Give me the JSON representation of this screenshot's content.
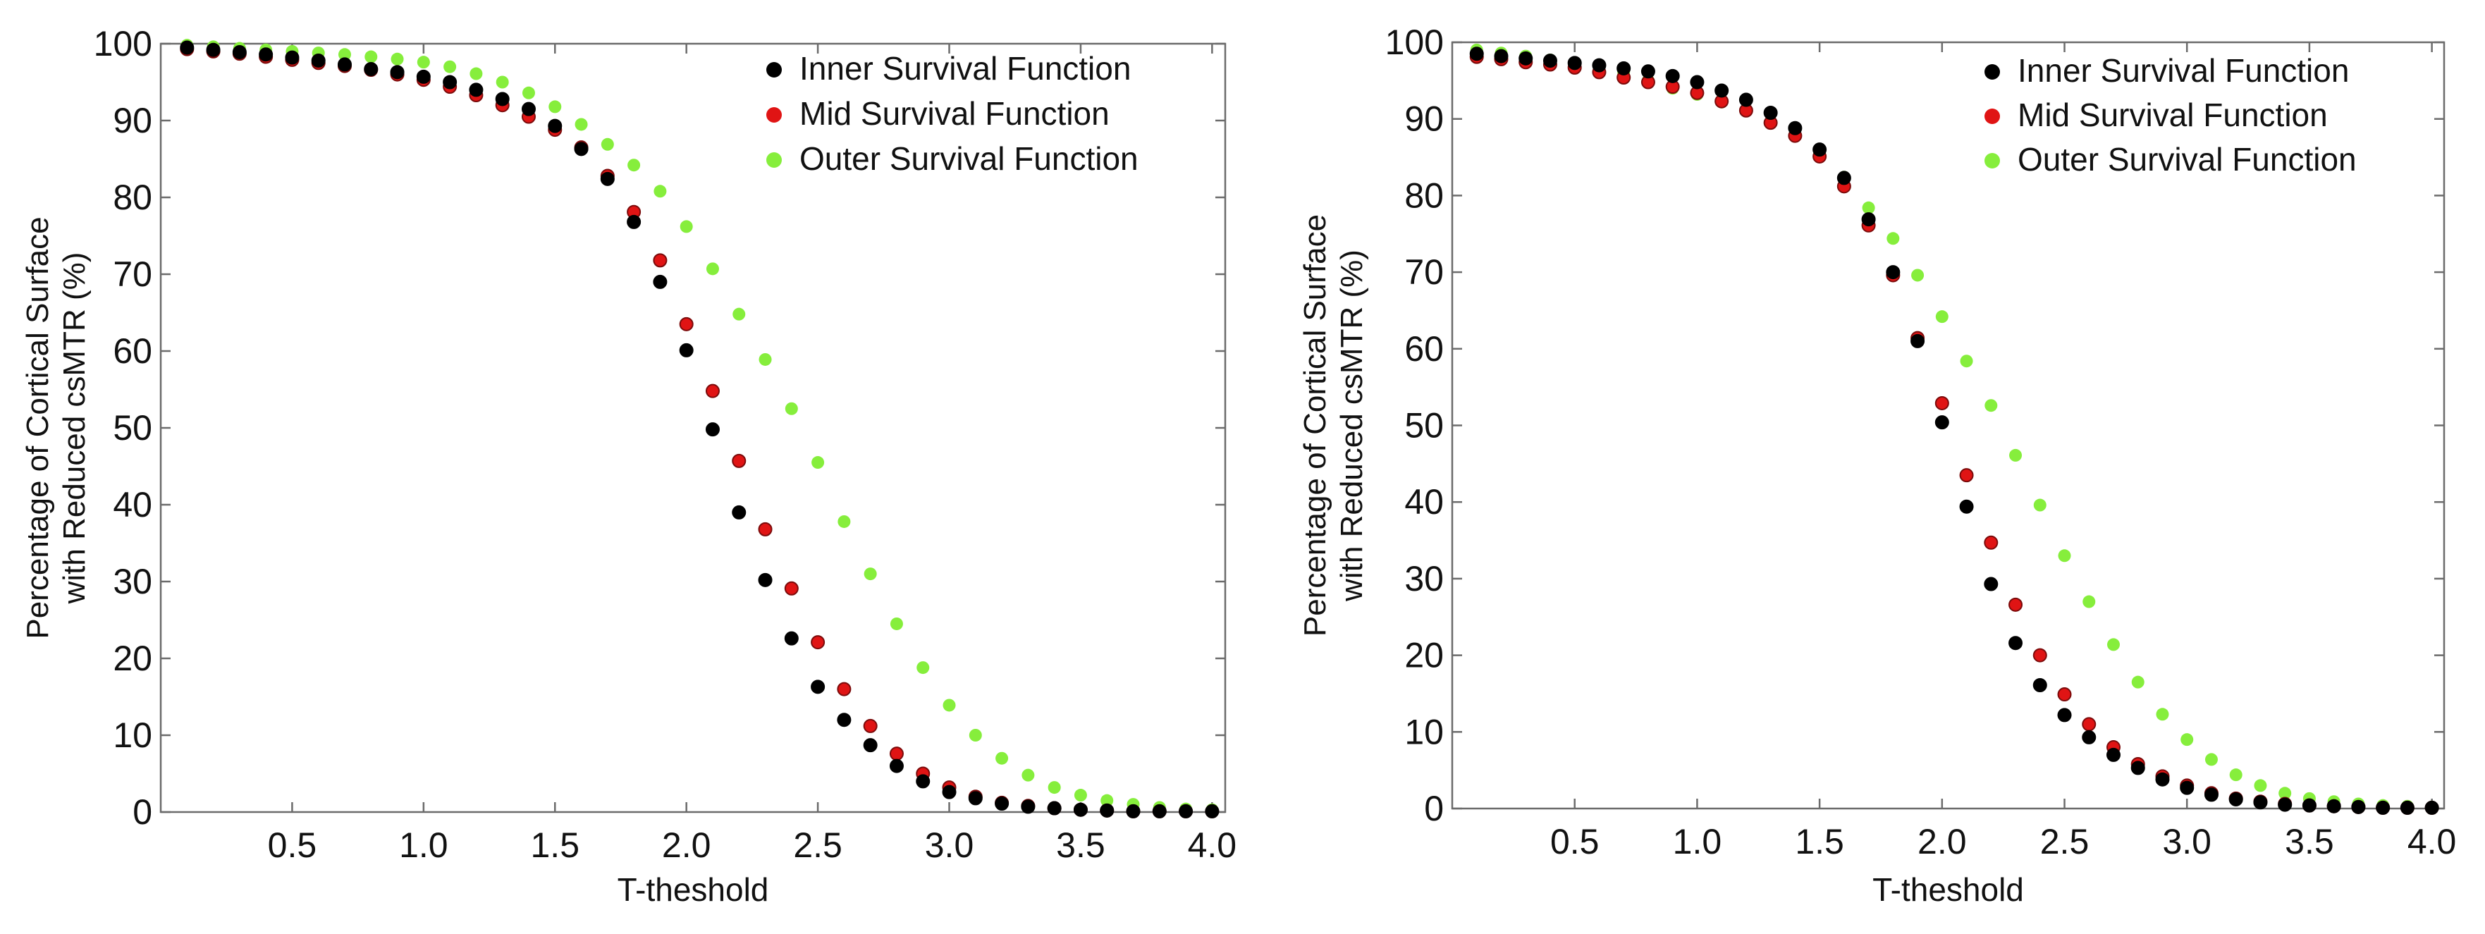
{
  "chart_data": [
    {
      "type": "scatter",
      "title": "",
      "xlabel": "T-theshold",
      "ylabel_lines": [
        "Percentage of Cortical Surface",
        "with Reduced csMTR (%)"
      ],
      "xlim": [
        0,
        4.05
      ],
      "ylim": [
        0,
        100
      ],
      "xticks": [
        "0.5",
        "1.0",
        "1.5",
        "2.0",
        "2.5",
        "3.0",
        "3.5",
        "4.0"
      ],
      "yticks": [
        "0",
        "10",
        "20",
        "30",
        "40",
        "50",
        "60",
        "70",
        "80",
        "90",
        "100"
      ],
      "legend_position": "top-right",
      "x": [
        0.1,
        0.2,
        0.3,
        0.4,
        0.5,
        0.6,
        0.7,
        0.8,
        0.9,
        1.0,
        1.1,
        1.2,
        1.3,
        1.4,
        1.5,
        1.6,
        1.7,
        1.8,
        1.9,
        2.0,
        2.1,
        2.2,
        2.3,
        2.4,
        2.5,
        2.6,
        2.7,
        2.8,
        2.9,
        3.0,
        3.1,
        3.2,
        3.3,
        3.4,
        3.5,
        3.6,
        3.7,
        3.8,
        3.9,
        4.0
      ],
      "series": [
        {
          "name": "Inner Survival Function",
          "color": "#000000",
          "marker": "star",
          "values": [
            99.5,
            99.2,
            98.9,
            98.6,
            98.2,
            97.8,
            97.3,
            96.7,
            96.3,
            95.7,
            95.0,
            94.0,
            92.8,
            91.5,
            89.3,
            86.3,
            82.4,
            76.8,
            69.0,
            60.1,
            49.8,
            39.0,
            30.2,
            22.6,
            16.3,
            12.0,
            8.7,
            6.0,
            4.0,
            2.6,
            1.8,
            1.1,
            0.7,
            0.5,
            0.3,
            0.2,
            0.1,
            0.1,
            0.1,
            0.1
          ]
        },
        {
          "name": "Mid Survival Function",
          "color": "#e01414",
          "marker": "star",
          "values": [
            99.3,
            99.0,
            98.7,
            98.3,
            97.9,
            97.5,
            97.1,
            96.6,
            96.0,
            95.3,
            94.4,
            93.3,
            92.0,
            90.5,
            88.8,
            86.5,
            82.8,
            78.1,
            71.8,
            63.5,
            54.8,
            45.7,
            36.8,
            29.1,
            22.1,
            16.0,
            11.2,
            7.6,
            5.0,
            3.2,
            2.0,
            1.2,
            0.8,
            0.5,
            0.3,
            0.2,
            0.1,
            0.1,
            0.1,
            0.1
          ]
        },
        {
          "name": "Outer Survival Function",
          "color": "#86ee3c",
          "marker": "circle",
          "values": [
            99.8,
            99.6,
            99.4,
            99.2,
            99.0,
            98.8,
            98.6,
            98.3,
            98.0,
            97.6,
            97.0,
            96.1,
            95.0,
            93.6,
            91.8,
            89.5,
            86.9,
            84.2,
            80.8,
            76.2,
            70.7,
            64.8,
            58.9,
            52.5,
            45.5,
            37.8,
            31.0,
            24.5,
            18.8,
            13.9,
            10.0,
            7.0,
            4.8,
            3.2,
            2.2,
            1.5,
            1.0,
            0.6,
            0.4,
            0.3
          ]
        }
      ]
    },
    {
      "type": "scatter",
      "title": "",
      "xlabel": "T-theshold",
      "ylabel_lines": [
        "Percentage of Cortical Surface",
        "with Reduced csMTR (%)"
      ],
      "xlim": [
        0,
        4.05
      ],
      "ylim": [
        0,
        100
      ],
      "xticks": [
        "0.5",
        "1.0",
        "1.5",
        "2.0",
        "2.5",
        "3.0",
        "3.5",
        "4.0"
      ],
      "yticks": [
        "0",
        "10",
        "20",
        "30",
        "40",
        "50",
        "60",
        "70",
        "80",
        "90",
        "100"
      ],
      "legend_position": "top-right",
      "x": [
        0.1,
        0.2,
        0.3,
        0.4,
        0.5,
        0.6,
        0.7,
        0.8,
        0.9,
        1.0,
        1.1,
        1.2,
        1.3,
        1.4,
        1.5,
        1.6,
        1.7,
        1.8,
        1.9,
        2.0,
        2.1,
        2.2,
        2.3,
        2.4,
        2.5,
        2.6,
        2.7,
        2.8,
        2.9,
        3.0,
        3.1,
        3.2,
        3.3,
        3.4,
        3.5,
        3.6,
        3.7,
        3.8,
        3.9,
        4.0
      ],
      "series": [
        {
          "name": "Inner Survival Function",
          "color": "#000000",
          "marker": "star",
          "values": [
            98.5,
            98.2,
            97.9,
            97.6,
            97.3,
            97.0,
            96.6,
            96.2,
            95.6,
            94.8,
            93.7,
            92.5,
            90.8,
            88.8,
            86.0,
            82.3,
            76.9,
            70.0,
            61.0,
            50.4,
            39.4,
            29.3,
            21.6,
            16.1,
            12.2,
            9.3,
            7.0,
            5.3,
            3.8,
            2.7,
            1.8,
            1.2,
            0.8,
            0.5,
            0.4,
            0.3,
            0.2,
            0.1,
            0.1,
            0.1
          ]
        },
        {
          "name": "Mid Survival Function",
          "color": "#e01414",
          "marker": "star",
          "values": [
            98.1,
            97.8,
            97.4,
            97.1,
            96.7,
            96.1,
            95.4,
            94.8,
            94.2,
            93.4,
            92.3,
            91.1,
            89.5,
            87.8,
            85.1,
            81.2,
            76.1,
            69.6,
            61.4,
            52.9,
            43.5,
            34.7,
            26.6,
            20.0,
            14.9,
            11.0,
            8.0,
            5.8,
            4.2,
            3.0,
            2.0,
            1.3,
            0.9,
            0.6,
            0.4,
            0.3,
            0.2,
            0.1,
            0.1,
            0.1
          ]
        },
        {
          "name": "Outer Survival Function",
          "color": "#86ee3c",
          "marker": "circle",
          "values": [
            99.0,
            98.6,
            98.2,
            97.7,
            97.3,
            96.7,
            96.1,
            95.0,
            94.0,
            93.2,
            92.2,
            91.1,
            89.6,
            88.0,
            85.6,
            82.4,
            78.4,
            74.4,
            69.6,
            64.2,
            58.4,
            52.6,
            46.1,
            39.6,
            33.0,
            27.0,
            21.4,
            16.5,
            12.3,
            9.0,
            6.4,
            4.4,
            3.0,
            2.0,
            1.3,
            0.9,
            0.6,
            0.4,
            0.3,
            0.2
          ]
        }
      ]
    }
  ]
}
